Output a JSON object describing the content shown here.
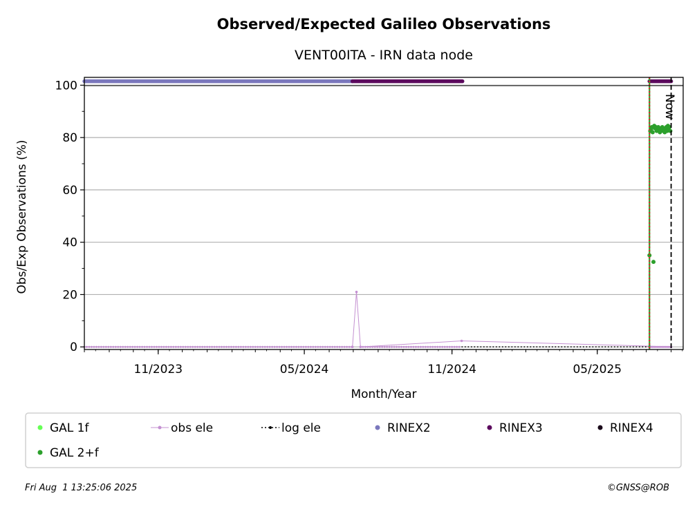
{
  "chart_data": {
    "type": "scatter",
    "title": "Observed/Expected Galileo Observations",
    "subtitle": "VENT00ITA - IRN data node",
    "xlabel": "Month/Year",
    "ylabel": "Obs/Exp Observations (%)",
    "ylim": [
      -1,
      103
    ],
    "xlim": [
      "2023-08-01",
      "2025-08-16"
    ],
    "yticks": [
      0,
      20,
      40,
      60,
      80,
      100
    ],
    "xticks": [
      {
        "date": "2023-11-01",
        "label": "11/2023"
      },
      {
        "date": "2024-05-01",
        "label": "05/2024"
      },
      {
        "date": "2024-11-01",
        "label": "11/2024"
      },
      {
        "date": "2025-05-01",
        "label": "05/2025"
      }
    ],
    "grid": "horizontal",
    "legend_position": "bottom",
    "now_marker": {
      "date": "2025-08-01",
      "label": "Now"
    },
    "station_start": "2025-07-05",
    "rinex_bars": [
      {
        "name": "RINEX2",
        "from": "2023-08-01",
        "to": "2024-06-30",
        "color": "#7b78bd"
      },
      {
        "name": "RINEX3",
        "from": "2024-06-30",
        "to": "2024-11-14",
        "color": "#5c0a5e"
      },
      {
        "name": "RINEX3",
        "from": "2025-07-05",
        "to": "2025-08-01",
        "color": "#5c0a5e"
      }
    ],
    "series": [
      {
        "name": "GAL 1f",
        "color": "#66ff55",
        "marker": "dot",
        "x": [],
        "y": []
      },
      {
        "name": "obs ele",
        "color": "#c490d1",
        "marker": "dot-line",
        "x": [
          "2024-06-30",
          "2024-07-05",
          "2024-07-10",
          "2024-11-13",
          "2025-07-05",
          "2025-08-01"
        ],
        "y": [
          0,
          21,
          0,
          2.3,
          0.3,
          0
        ]
      },
      {
        "name": "log ele",
        "color": "#000000",
        "marker": "dotted-line",
        "x": [
          "2024-11-13",
          "2025-08-01"
        ],
        "y": [
          0,
          0
        ]
      },
      {
        "name": "RINEX2",
        "color": "#7b78bd",
        "marker": "dot",
        "x": [],
        "y": []
      },
      {
        "name": "RINEX3",
        "color": "#5c0a5e",
        "marker": "dot",
        "x": [],
        "y": []
      },
      {
        "name": "RINEX4",
        "color": "#1a0a1a",
        "marker": "dot",
        "x": [],
        "y": []
      },
      {
        "name": "GAL 2+f",
        "color": "#2ca02c",
        "marker": "dot",
        "x": [
          "2025-07-05",
          "2025-07-06",
          "2025-07-07",
          "2025-07-08",
          "2025-07-09",
          "2025-07-10",
          "2025-07-11",
          "2025-07-12",
          "2025-07-13",
          "2025-07-14",
          "2025-07-15",
          "2025-07-16",
          "2025-07-17",
          "2025-07-18",
          "2025-07-19",
          "2025-07-20",
          "2025-07-21",
          "2025-07-22",
          "2025-07-23",
          "2025-07-24",
          "2025-07-25",
          "2025-07-26",
          "2025-07-27",
          "2025-07-28",
          "2025-07-29",
          "2025-07-30",
          "2025-07-31"
        ],
        "y": [
          35,
          82.5,
          83,
          84,
          82,
          32.5,
          84.5,
          83.5,
          84,
          82.5,
          83,
          84,
          83.5,
          82,
          83,
          83.5,
          84,
          82.5,
          83,
          82,
          83.5,
          84,
          82.5,
          84.5,
          83,
          84,
          82.5
        ]
      }
    ]
  },
  "legend": {
    "items": [
      {
        "label": "GAL 1f",
        "color": "#66ff55",
        "kind": "dot"
      },
      {
        "label": "obs ele",
        "color": "#c490d1",
        "kind": "dot-line"
      },
      {
        "label": "log ele",
        "color": "#000000",
        "kind": "dotted-line"
      },
      {
        "label": "RINEX2",
        "color": "#7b78bd",
        "kind": "dot"
      },
      {
        "label": "RINEX3",
        "color": "#5c0a5e",
        "kind": "dot"
      },
      {
        "label": "RINEX4",
        "color": "#1a0a1a",
        "kind": "dot"
      },
      {
        "label": "GAL 2+f",
        "color": "#2ca02c",
        "kind": "dot"
      }
    ]
  },
  "footer": {
    "timestamp": "Fri Aug  1 13:25:06 2025",
    "credit": "©GNSS@ROB"
  }
}
